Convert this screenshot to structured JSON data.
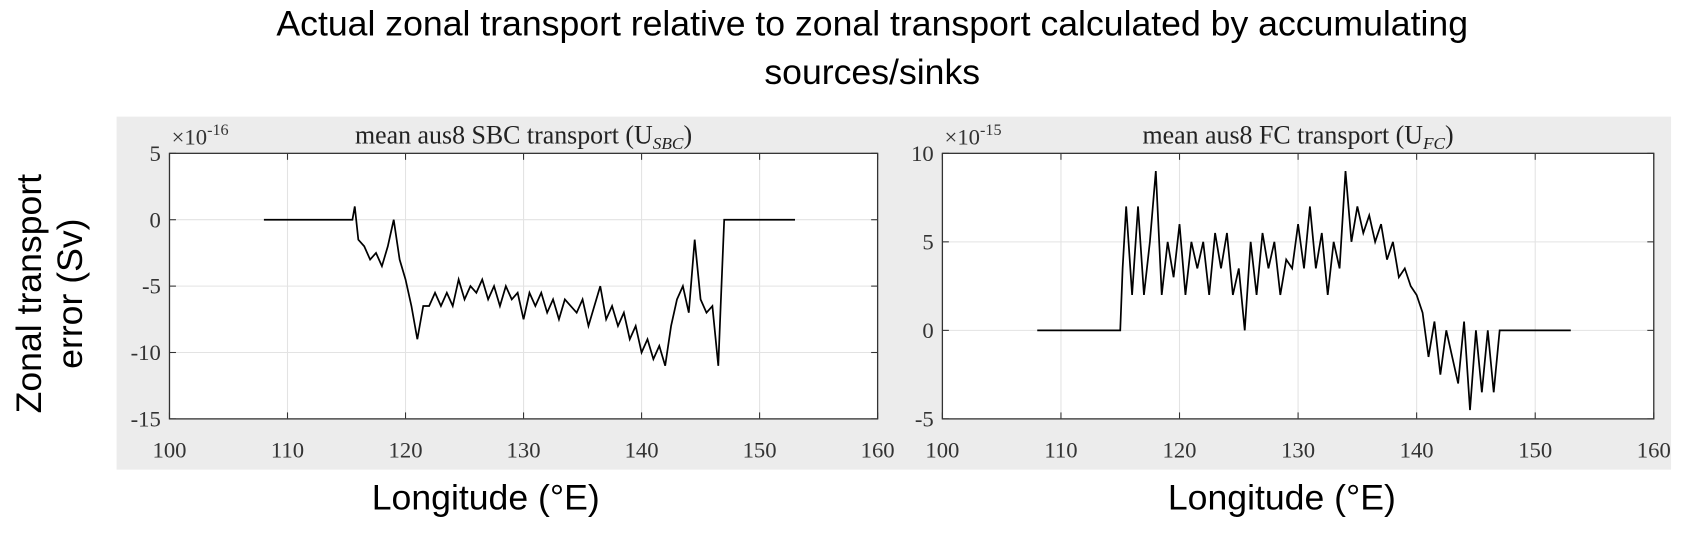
{
  "figure": {
    "title": [
      "Actual zonal transport relative to zonal transport calculated by accumulating",
      "sources/sinks"
    ],
    "y_label": [
      "Zonal transport",
      "error (Sv)"
    ]
  },
  "chart_data": [
    {
      "type": "line",
      "title_parts": [
        "mean aus8 SBC transport (U",
        "SBC",
        ")"
      ],
      "y_scale": {
        "base": "×10",
        "exponent": "-16"
      },
      "x_label": "Longitude (°E)",
      "color": "#000000",
      "grid": true,
      "xlim": [
        100,
        160
      ],
      "xticks": [
        100,
        110,
        120,
        130,
        140,
        150,
        160
      ],
      "ylim": [
        -15,
        5
      ],
      "yticks": [
        -15,
        -10,
        -5,
        0,
        5
      ],
      "x": [
        108,
        115.5,
        115.7,
        116,
        116.5,
        117,
        117.5,
        118,
        118.5,
        119,
        119.5,
        120,
        120.5,
        121,
        121.5,
        122,
        122.5,
        123,
        123.5,
        124,
        124.5,
        125,
        125.5,
        126,
        126.5,
        127,
        127.5,
        128,
        128.5,
        129,
        129.5,
        130,
        130.5,
        131,
        131.5,
        132,
        132.5,
        133,
        133.5,
        134,
        134.5,
        135,
        135.5,
        136,
        136.5,
        137,
        137.5,
        138,
        138.5,
        139,
        139.5,
        140,
        140.5,
        141,
        141.5,
        142,
        142.5,
        143,
        143.5,
        144,
        144.5,
        145,
        145.5,
        146,
        146.5,
        146.7,
        147,
        153
      ],
      "values": [
        0,
        0,
        1,
        -1.5,
        -2,
        -3,
        -2.5,
        -3.5,
        -2,
        0,
        -3,
        -4.5,
        -6.5,
        -9,
        -6.5,
        -6.5,
        -5.5,
        -6.5,
        -5.5,
        -6.5,
        -4.5,
        -6,
        -5,
        -5.5,
        -4.5,
        -6,
        -5,
        -6.5,
        -5,
        -6,
        -5.5,
        -7.5,
        -5.5,
        -6.5,
        -5.5,
        -7,
        -6,
        -7.5,
        -6,
        -6.5,
        -7,
        -6,
        -8,
        -6.5,
        -5,
        -7.5,
        -6.5,
        -8,
        -7,
        -9,
        -8,
        -10,
        -9,
        -10.5,
        -9.5,
        -11,
        -8,
        -6,
        -5,
        -7,
        -1.5,
        -6,
        -7,
        -6.5,
        -11,
        -6.5,
        0,
        0
      ]
    },
    {
      "type": "line",
      "title_parts": [
        "mean aus8 FC transport (U",
        "FC",
        ")"
      ],
      "y_scale": {
        "base": "×10",
        "exponent": "-15"
      },
      "x_label": "Longitude (°E)",
      "color": "#000000",
      "grid": true,
      "xlim": [
        100,
        160
      ],
      "xticks": [
        100,
        110,
        120,
        130,
        140,
        150,
        160
      ],
      "ylim": [
        -5,
        10
      ],
      "yticks": [
        -5,
        0,
        5,
        10
      ],
      "x": [
        108,
        115,
        115.2,
        115.5,
        116,
        116.5,
        117,
        117.5,
        118,
        118.5,
        119,
        119.5,
        120,
        120.5,
        121,
        121.5,
        122,
        122.5,
        123,
        123.5,
        124,
        124.5,
        125,
        125.5,
        126,
        126.5,
        127,
        127.5,
        128,
        128.5,
        129,
        129.5,
        130,
        130.5,
        131,
        131.5,
        132,
        132.5,
        133,
        133.5,
        134,
        134.5,
        135,
        135.5,
        136,
        136.5,
        137,
        137.5,
        138,
        138.5,
        139,
        139.5,
        140,
        140.5,
        141,
        141.5,
        142,
        142.5,
        143,
        143.5,
        144,
        144.5,
        145,
        145.5,
        146,
        146.5,
        147,
        153
      ],
      "values": [
        0,
        0,
        3.5,
        7,
        2,
        7,
        2,
        5,
        9,
        2,
        5,
        3,
        6,
        2,
        5,
        3.5,
        5,
        2,
        5.5,
        3.5,
        5.5,
        2,
        3.5,
        0,
        5,
        2,
        5.5,
        3.5,
        5,
        2,
        4,
        3.5,
        6,
        3.5,
        7,
        3.5,
        5.5,
        2,
        5,
        3.5,
        9,
        5,
        7,
        5.5,
        6.5,
        5,
        6,
        4,
        5,
        3,
        3.5,
        2.5,
        2,
        1,
        -1.5,
        0.5,
        -2.5,
        0,
        -1.5,
        -3,
        0.5,
        -4.5,
        0,
        -3.5,
        0,
        -3.5,
        0,
        0
      ]
    }
  ]
}
